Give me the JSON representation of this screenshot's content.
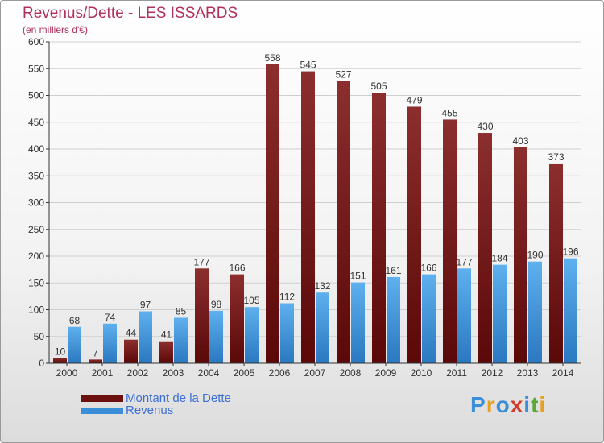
{
  "header": {
    "title": "Revenus/Dette - LES ISSARDS",
    "subtitle": "(en milliers d'€)"
  },
  "logo": {
    "text": "Proxiti"
  },
  "colors": {
    "dette": "#7a1a1a",
    "dette_light": "#8c2e2e",
    "revenus": "#3a8fd8",
    "revenus_light": "#5eb0ee",
    "grid": "#cfcfcf",
    "axis": "#333333"
  },
  "chart_data": {
    "type": "bar",
    "title": "Revenus/Dette - LES ISSARDS",
    "subtitle": "(en milliers d'€)",
    "xlabel": "",
    "ylabel": "",
    "categories": [
      "2000",
      "2001",
      "2002",
      "2003",
      "2004",
      "2005",
      "2006",
      "2007",
      "2008",
      "2009",
      "2010",
      "2011",
      "2012",
      "2013",
      "2014"
    ],
    "series": [
      {
        "name": "Montant de la Dette",
        "values": [
          10,
          7,
          44,
          41,
          177,
          166,
          558,
          545,
          527,
          505,
          479,
          455,
          430,
          403,
          373
        ]
      },
      {
        "name": "Revenus",
        "values": [
          68,
          74,
          97,
          85,
          98,
          105,
          112,
          132,
          151,
          161,
          166,
          177,
          184,
          190,
          196
        ]
      }
    ],
    "ylim": [
      0,
      600
    ],
    "yticks": [
      0,
      50,
      100,
      150,
      200,
      250,
      300,
      350,
      400,
      450,
      500,
      550,
      600
    ],
    "grid": true,
    "legend": "bottom-left"
  }
}
